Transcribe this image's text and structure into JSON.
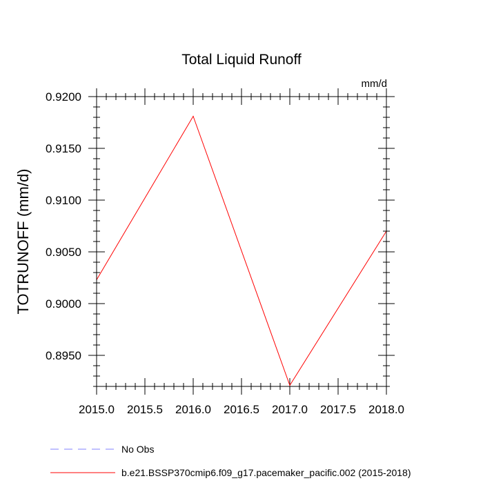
{
  "chart_data": {
    "type": "line",
    "title": "Total Liquid Runoff",
    "units_label": "mm/d",
    "ylabel": "TOTRUNOFF  (mm/d)",
    "xlabel": "",
    "xlim": [
      2015.0,
      2018.0
    ],
    "ylim": [
      0.892,
      0.92
    ],
    "x_ticks": [
      {
        "value": 2015.0,
        "label": "2015.0"
      },
      {
        "value": 2015.5,
        "label": "2015.5"
      },
      {
        "value": 2016.0,
        "label": "2016.0"
      },
      {
        "value": 2016.5,
        "label": "2016.5"
      },
      {
        "value": 2017.0,
        "label": "2017.0"
      },
      {
        "value": 2017.5,
        "label": "2017.5"
      },
      {
        "value": 2018.0,
        "label": "2018.0"
      }
    ],
    "y_ticks": [
      {
        "value": 0.895,
        "label": "0.8950"
      },
      {
        "value": 0.9,
        "label": "0.9000"
      },
      {
        "value": 0.905,
        "label": "0.9050"
      },
      {
        "value": 0.91,
        "label": "0.9100"
      },
      {
        "value": 0.915,
        "label": "0.9150"
      },
      {
        "value": 0.92,
        "label": "0.9200"
      }
    ],
    "x_minor_step": 0.1,
    "y_minor_step": 0.001,
    "grid": false,
    "legend_position": "bottom-left",
    "series": [
      {
        "name": "b.e21.BSSP370cmip6.f09_g17.pacemaker_pacific.002 (2015-2018)",
        "color": "#ff0000",
        "dash": "solid",
        "x": [
          2015.0,
          2016.0,
          2017.0,
          2018.0
        ],
        "y": [
          0.9023,
          0.9181,
          0.8921,
          0.907
        ]
      }
    ],
    "legend": [
      {
        "label": "No Obs",
        "color": "#8080ff",
        "dash": "dashed"
      },
      {
        "label": "b.e21.BSSP370cmip6.f09_g17.pacemaker_pacific.002 (2015-2018)",
        "color": "#ff0000",
        "dash": "solid"
      }
    ]
  }
}
